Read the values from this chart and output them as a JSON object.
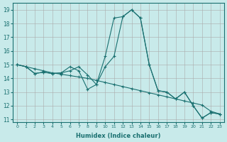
{
  "xlabel": "Humidex (Indice chaleur)",
  "background_color": "#c8eaea",
  "line_color": "#1a7070",
  "xlim": [
    -0.5,
    23.5
  ],
  "ylim": [
    10.8,
    19.5
  ],
  "yticks": [
    11,
    12,
    13,
    14,
    15,
    16,
    17,
    18,
    19
  ],
  "xticks": [
    0,
    1,
    2,
    3,
    4,
    5,
    6,
    7,
    8,
    9,
    10,
    11,
    12,
    13,
    14,
    15,
    16,
    17,
    18,
    19,
    20,
    21,
    22,
    23
  ],
  "series": [
    {
      "x": [
        0,
        1,
        2,
        3,
        4,
        5,
        6,
        7,
        8,
        9,
        10,
        11,
        12,
        13,
        14,
        15,
        16,
        17,
        18,
        19,
        20,
        21,
        22,
        23
      ],
      "y": [
        15.0,
        14.85,
        14.35,
        14.45,
        14.35,
        14.4,
        14.55,
        14.85,
        14.25,
        13.55,
        15.6,
        18.4,
        18.5,
        19.0,
        18.4,
        15.0,
        13.1,
        13.0,
        12.5,
        13.0,
        12.0,
        11.1,
        11.5,
        11.4
      ]
    },
    {
      "x": [
        0,
        1,
        2,
        3,
        4,
        5,
        6,
        7,
        8,
        9,
        10,
        11,
        12,
        13,
        14,
        15,
        16,
        17,
        18,
        19,
        20,
        21,
        22,
        23
      ],
      "y": [
        15.0,
        14.85,
        14.35,
        14.45,
        14.35,
        14.4,
        14.85,
        14.55,
        13.2,
        13.55,
        14.85,
        15.6,
        18.5,
        19.0,
        18.4,
        15.0,
        13.1,
        13.0,
        12.5,
        13.0,
        12.0,
        11.1,
        11.5,
        11.4
      ]
    },
    {
      "x": [
        0,
        1,
        2,
        3,
        4,
        5,
        6,
        7,
        8,
        9,
        10,
        11,
        12,
        13,
        14,
        15,
        16,
        17,
        18,
        19,
        20,
        21,
        22,
        23
      ],
      "y": [
        15.0,
        14.85,
        14.7,
        14.55,
        14.4,
        14.3,
        14.2,
        14.1,
        14.0,
        13.85,
        13.7,
        13.55,
        13.4,
        13.25,
        13.1,
        12.95,
        12.8,
        12.65,
        12.5,
        12.35,
        12.2,
        12.05,
        11.6,
        11.4
      ]
    }
  ]
}
